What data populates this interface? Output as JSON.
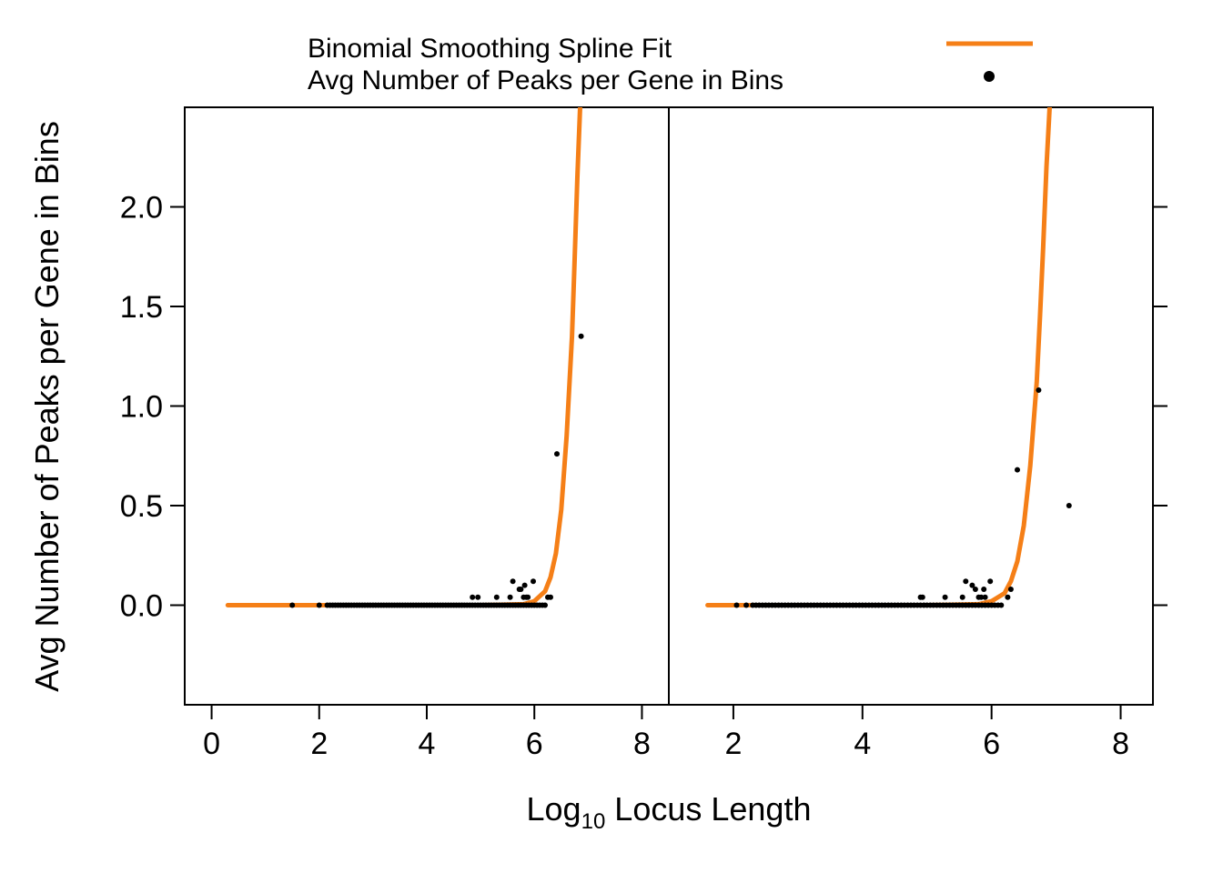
{
  "legend": {
    "placement": "top",
    "items": [
      {
        "label": "Binomial Smoothing Spline Fit",
        "symbol": "line",
        "color": "#f57f17"
      },
      {
        "label": "Avg Number of Peaks per Gene in Bins",
        "symbol": "point",
        "color": "#000000"
      }
    ]
  },
  "chart_data": {
    "type": "scatter",
    "layout": "two-panel",
    "xlabel_main": "Log",
    "xlabel_sub": "10",
    "xlabel_rest": " Locus Length",
    "ylabel": "Avg Number of Peaks per Gene in Bins",
    "ylim": [
      -0.5,
      2.5
    ],
    "yticks": [
      0.0,
      0.5,
      1.0,
      1.5,
      2.0
    ],
    "ytick_labels": [
      "0.0",
      "0.5",
      "1.0",
      "1.5",
      "2.0"
    ],
    "grid": false,
    "line_color": "#f57f17",
    "point_color": "#000000",
    "panels": [
      {
        "xlim": [
          -0.5,
          8.5
        ],
        "xticks": [
          0,
          2,
          4,
          6,
          8
        ],
        "xtick_labels": [
          "0",
          "2",
          "4",
          "6",
          "8"
        ],
        "fit": {
          "x": [
            0.3,
            5.0,
            5.8,
            6.0,
            6.2,
            6.3,
            6.4,
            6.5,
            6.6,
            6.7,
            6.75,
            6.8,
            6.85,
            6.88
          ],
          "y": [
            0.0,
            0.0,
            0.005,
            0.02,
            0.07,
            0.14,
            0.26,
            0.48,
            0.85,
            1.35,
            1.75,
            2.15,
            2.5,
            2.6
          ]
        },
        "points": {
          "x": [
            1.5,
            2.0,
            2.15,
            2.2,
            2.25,
            2.3,
            2.35,
            2.4,
            2.45,
            2.5,
            2.55,
            2.6,
            2.65,
            2.7,
            2.75,
            2.8,
            2.85,
            2.9,
            2.95,
            3.0,
            3.05,
            3.1,
            3.15,
            3.2,
            3.25,
            3.3,
            3.35,
            3.4,
            3.45,
            3.5,
            3.55,
            3.6,
            3.65,
            3.7,
            3.75,
            3.8,
            3.85,
            3.9,
            3.95,
            4.0,
            4.05,
            4.1,
            4.15,
            4.2,
            4.25,
            4.3,
            4.35,
            4.4,
            4.45,
            4.5,
            4.55,
            4.6,
            4.65,
            4.7,
            4.75,
            4.8,
            4.85,
            4.9,
            4.95,
            5.0,
            5.05,
            5.1,
            5.15,
            5.2,
            5.25,
            5.3,
            5.35,
            5.4,
            5.45,
            5.5,
            5.55,
            5.6,
            5.65,
            5.7,
            5.75,
            5.8,
            5.85,
            5.9,
            5.95,
            6.0,
            6.05,
            6.1,
            6.15,
            6.2,
            4.85,
            4.95,
            5.3,
            5.55,
            5.6,
            5.72,
            5.75,
            5.8,
            5.82,
            5.85,
            5.88,
            5.98,
            6.25,
            6.3,
            6.42,
            6.87
          ],
          "y": [
            0.0,
            0.0,
            0.0,
            0.0,
            0.0,
            0.0,
            0.0,
            0.0,
            0.0,
            0.0,
            0.0,
            0.0,
            0.0,
            0.0,
            0.0,
            0.0,
            0.0,
            0.0,
            0.0,
            0.0,
            0.0,
            0.0,
            0.0,
            0.0,
            0.0,
            0.0,
            0.0,
            0.0,
            0.0,
            0.0,
            0.0,
            0.0,
            0.0,
            0.0,
            0.0,
            0.0,
            0.0,
            0.0,
            0.0,
            0.0,
            0.0,
            0.0,
            0.0,
            0.0,
            0.0,
            0.0,
            0.0,
            0.0,
            0.0,
            0.0,
            0.0,
            0.0,
            0.0,
            0.0,
            0.0,
            0.0,
            0.0,
            0.0,
            0.0,
            0.0,
            0.0,
            0.0,
            0.0,
            0.0,
            0.0,
            0.0,
            0.0,
            0.0,
            0.0,
            0.0,
            0.0,
            0.0,
            0.0,
            0.0,
            0.0,
            0.0,
            0.0,
            0.0,
            0.0,
            0.0,
            0.0,
            0.0,
            0.0,
            0.0,
            0.04,
            0.04,
            0.04,
            0.04,
            0.12,
            0.08,
            0.08,
            0.04,
            0.1,
            0.04,
            0.04,
            0.12,
            0.04,
            0.04,
            0.76,
            1.35
          ]
        }
      },
      {
        "xlim": [
          1.0,
          8.5
        ],
        "xticks": [
          2,
          4,
          6,
          8
        ],
        "xtick_labels": [
          "2",
          "4",
          "6",
          "8"
        ],
        "fit": {
          "x": [
            1.6,
            5.0,
            5.8,
            6.0,
            6.2,
            6.3,
            6.4,
            6.5,
            6.6,
            6.7,
            6.75,
            6.8,
            6.85,
            6.9,
            6.93
          ],
          "y": [
            0.0,
            0.0,
            0.005,
            0.02,
            0.06,
            0.12,
            0.22,
            0.4,
            0.7,
            1.12,
            1.45,
            1.8,
            2.2,
            2.5,
            2.6
          ]
        },
        "points": {
          "x": [
            2.05,
            2.2,
            2.3,
            2.35,
            2.4,
            2.45,
            2.5,
            2.55,
            2.6,
            2.65,
            2.7,
            2.75,
            2.8,
            2.85,
            2.9,
            2.95,
            3.0,
            3.05,
            3.1,
            3.15,
            3.2,
            3.25,
            3.3,
            3.35,
            3.4,
            3.45,
            3.5,
            3.55,
            3.6,
            3.65,
            3.7,
            3.75,
            3.8,
            3.85,
            3.9,
            3.95,
            4.0,
            4.05,
            4.1,
            4.15,
            4.2,
            4.25,
            4.3,
            4.35,
            4.4,
            4.45,
            4.5,
            4.55,
            4.6,
            4.65,
            4.7,
            4.75,
            4.8,
            4.85,
            4.9,
            4.95,
            5.0,
            5.05,
            5.1,
            5.15,
            5.2,
            5.25,
            5.3,
            5.35,
            5.4,
            5.45,
            5.5,
            5.55,
            5.6,
            5.65,
            5.7,
            5.75,
            5.8,
            5.85,
            5.9,
            5.95,
            6.0,
            6.05,
            6.1,
            6.15,
            4.9,
            4.93,
            5.28,
            5.55,
            5.6,
            5.7,
            5.75,
            5.8,
            5.84,
            5.88,
            5.9,
            5.98,
            6.25,
            6.3,
            6.4,
            6.73,
            7.2
          ],
          "y": [
            0.0,
            0.0,
            0.0,
            0.0,
            0.0,
            0.0,
            0.0,
            0.0,
            0.0,
            0.0,
            0.0,
            0.0,
            0.0,
            0.0,
            0.0,
            0.0,
            0.0,
            0.0,
            0.0,
            0.0,
            0.0,
            0.0,
            0.0,
            0.0,
            0.0,
            0.0,
            0.0,
            0.0,
            0.0,
            0.0,
            0.0,
            0.0,
            0.0,
            0.0,
            0.0,
            0.0,
            0.0,
            0.0,
            0.0,
            0.0,
            0.0,
            0.0,
            0.0,
            0.0,
            0.0,
            0.0,
            0.0,
            0.0,
            0.0,
            0.0,
            0.0,
            0.0,
            0.0,
            0.0,
            0.0,
            0.0,
            0.0,
            0.0,
            0.0,
            0.0,
            0.0,
            0.0,
            0.0,
            0.0,
            0.0,
            0.0,
            0.0,
            0.0,
            0.0,
            0.0,
            0.0,
            0.0,
            0.0,
            0.0,
            0.0,
            0.0,
            0.0,
            0.0,
            0.0,
            0.0,
            0.04,
            0.04,
            0.04,
            0.04,
            0.12,
            0.1,
            0.08,
            0.04,
            0.04,
            0.08,
            0.04,
            0.12,
            0.04,
            0.08,
            0.68,
            1.08,
            0.5
          ]
        }
      }
    ]
  }
}
